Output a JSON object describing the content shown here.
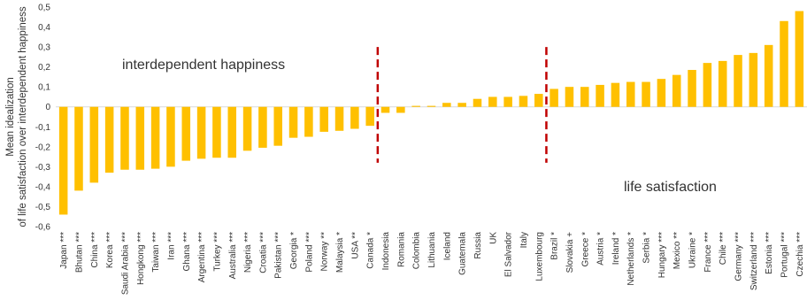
{
  "chart_data": {
    "type": "bar",
    "ylabel_lines": [
      "Mean idealization",
      "of life satisfaction over interdependent happiness"
    ],
    "ylim": [
      -0.6,
      0.5
    ],
    "ytick_labels": [
      "0,5",
      "0,4",
      "0,3",
      "0,2",
      "0,1",
      "0",
      "-0,1",
      "-0,2",
      "-0,3",
      "-0,4",
      "-0,5",
      "-0,6"
    ],
    "ytick_values": [
      0.5,
      0.4,
      0.3,
      0.2,
      0.1,
      0,
      -0.1,
      -0.2,
      -0.3,
      -0.4,
      -0.5,
      -0.6
    ],
    "categories": [
      "Japan ***",
      "Bhutan ***",
      "China ***",
      "Korea ***",
      "Saudi Arabia ***",
      "Hongkong ***",
      "Taiwan ***",
      "Iran ***",
      "Ghana ***",
      "Argentina ***",
      "Turkey ***",
      "Australia ***",
      "Nigeria ***",
      "Croatia ***",
      "Pakistan ***",
      "Georgia *",
      "Poland ***",
      "Norway **",
      "Malaysia *",
      "USA **",
      "Canada *",
      "Indonesia",
      "Romania",
      "Colombia",
      "Lithuania",
      "Iceland",
      "Guatemala",
      "Russia",
      "UK",
      "El Salvador",
      "Italy",
      "Luxembourg",
      "Brazil *",
      "Slovakia +",
      "Greece *",
      "Austria *",
      "Ireland *",
      "Netherlands *",
      "Serbia *",
      "Hungary ***",
      "Mexico **",
      "Ukraine *",
      "France ***",
      "Chile ***",
      "Germany ***",
      "Switzerland ***",
      "Estonia ***",
      "Portugal ***",
      "Czechia ***"
    ],
    "values": [
      -0.54,
      -0.42,
      -0.38,
      -0.33,
      -0.315,
      -0.315,
      -0.31,
      -0.3,
      -0.27,
      -0.26,
      -0.255,
      -0.255,
      -0.22,
      -0.205,
      -0.195,
      -0.155,
      -0.15,
      -0.125,
      -0.12,
      -0.11,
      -0.095,
      -0.03,
      -0.03,
      0.005,
      0.005,
      0.02,
      0.02,
      0.04,
      0.05,
      0.05,
      0.055,
      0.065,
      0.09,
      0.1,
      0.1,
      0.11,
      0.12,
      0.125,
      0.125,
      0.14,
      0.16,
      0.185,
      0.22,
      0.23,
      0.26,
      0.27,
      0.31,
      0.43,
      0.48
    ],
    "bar_color": "#FFC000",
    "divider_color": "#C00000",
    "divider_after_index": [
      20,
      31
    ],
    "annotations": {
      "left": "interdependent happiness",
      "right": "life satisfaction"
    },
    "grid": false
  }
}
